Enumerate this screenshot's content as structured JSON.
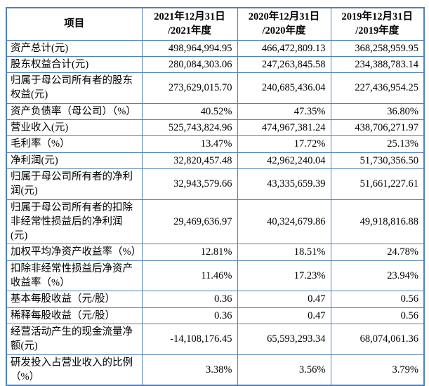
{
  "colors": {
    "border": "#4f81bd",
    "text": "#000000",
    "background": "#ffffff"
  },
  "table": {
    "header": {
      "item": "项目",
      "col1": "2021年12月31日\n/2021年度",
      "col2": "2020年12月31日\n/2020年度",
      "col3": "2019年12月31日\n/2019年度"
    },
    "rows": [
      {
        "label": "资产总计(元)",
        "values": [
          "498,964,994.95",
          "466,472,809.13",
          "368,258,959.95"
        ]
      },
      {
        "label": "股东权益合计(元)",
        "values": [
          "280,084,303.06",
          "247,263,845.58",
          "234,388,783.14"
        ]
      },
      {
        "label": "归属于母公司所有者的股东权益(元)",
        "values": [
          "273,629,015.70",
          "240,685,436.04",
          "227,436,954.25"
        ]
      },
      {
        "label": "资产负债率（母公司）（%）",
        "values": [
          "40.52%",
          "47.35%",
          "36.80%"
        ]
      },
      {
        "label": "营业收入(元)",
        "values": [
          "525,743,824.96",
          "474,967,381.24",
          "438,706,271.97"
        ]
      },
      {
        "label": "毛利率（%）",
        "values": [
          "13.47%",
          "17.72%",
          "25.13%"
        ]
      },
      {
        "label": "净利润(元)",
        "values": [
          "32,820,457.48",
          "42,962,240.04",
          "51,730,356.50"
        ]
      },
      {
        "label": "归属于母公司所有者的净利润(元)",
        "values": [
          "32,943,579.66",
          "43,335,659.39",
          "51,661,227.61"
        ]
      },
      {
        "label": "归属于母公司所有者的扣除非经常性损益后的净利润(元)",
        "values": [
          "29,469,636.97",
          "40,324,679.86",
          "49,918,816.88"
        ]
      },
      {
        "label": "加权平均净资产收益率（%）",
        "values": [
          "12.81%",
          "18.51%",
          "24.78%"
        ]
      },
      {
        "label": "扣除非经常性损益后净资产收益率（%）",
        "values": [
          "11.46%",
          "17.23%",
          "23.94%"
        ]
      },
      {
        "label": "基本每股收益（元/股）",
        "values": [
          "0.36",
          "0.47",
          "0.56"
        ]
      },
      {
        "label": "稀释每股收益（元/股）",
        "values": [
          "0.36",
          "0.47",
          "0.56"
        ]
      },
      {
        "label": "经营活动产生的现金流量净额(元)",
        "values": [
          "-14,108,176.45",
          "65,593,293.34",
          "68,074,061.36"
        ]
      },
      {
        "label": "研发投入占营业收入的比例（%）",
        "values": [
          "3.38%",
          "3.56%",
          "3.79%"
        ]
      }
    ]
  }
}
